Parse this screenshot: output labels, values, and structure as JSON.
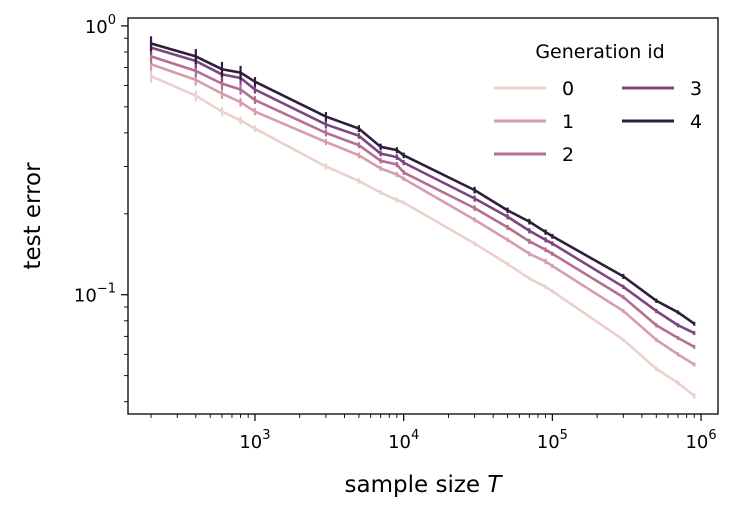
{
  "chart_data": {
    "type": "line",
    "xscale": "log",
    "yscale": "log",
    "xlabel": "sample size T",
    "ylabel": "test error",
    "xlim": [
      140,
      1300000
    ],
    "ylim": [
      0.036,
      1.07
    ],
    "x": [
      200,
      400,
      600,
      800,
      1000,
      3000,
      5000,
      7000,
      9000,
      10000,
      30000,
      50000,
      70000,
      90000,
      100000,
      300000,
      500000,
      700000,
      900000
    ],
    "xticks": [
      {
        "value": 1000,
        "base": "10",
        "exp": "3"
      },
      {
        "value": 10000,
        "base": "10",
        "exp": "4"
      },
      {
        "value": 100000,
        "base": "10",
        "exp": "5"
      },
      {
        "value": 1000000,
        "base": "10",
        "exp": "6"
      }
    ],
    "yticks": [
      {
        "value": 0.1,
        "base": "10",
        "exp": "−1"
      },
      {
        "value": 1,
        "base": "10",
        "exp": "0"
      }
    ],
    "legend": {
      "title": "Generation id",
      "position": "top-right",
      "ncol": 2
    },
    "series": [
      {
        "name": "0",
        "color": "#ebd1cb",
        "values": [
          0.65,
          0.55,
          0.48,
          0.445,
          0.415,
          0.3,
          0.265,
          0.24,
          0.225,
          0.22,
          0.155,
          0.13,
          0.115,
          0.107,
          0.103,
          0.068,
          0.053,
          0.047,
          0.042
        ],
        "errors": [
          0.035,
          0.025,
          0.02,
          0.015,
          0.012,
          0.008,
          0.006,
          0.005,
          0.005,
          0.004,
          0.003,
          0.0025,
          0.002,
          0.002,
          0.002,
          0.001,
          0.001,
          0.001,
          0.001
        ]
      },
      {
        "name": "1",
        "color": "#d49eae",
        "values": [
          0.72,
          0.63,
          0.56,
          0.52,
          0.48,
          0.37,
          0.33,
          0.295,
          0.28,
          0.27,
          0.19,
          0.16,
          0.142,
          0.133,
          0.128,
          0.087,
          0.068,
          0.06,
          0.055
        ],
        "errors": [
          0.04,
          0.03,
          0.025,
          0.02,
          0.015,
          0.01,
          0.008,
          0.006,
          0.006,
          0.005,
          0.004,
          0.003,
          0.003,
          0.003,
          0.002,
          0.0015,
          0.0012,
          0.001,
          0.001
        ]
      },
      {
        "name": "2",
        "color": "#b56f96",
        "values": [
          0.77,
          0.68,
          0.61,
          0.58,
          0.53,
          0.4,
          0.36,
          0.315,
          0.305,
          0.285,
          0.21,
          0.178,
          0.158,
          0.147,
          0.142,
          0.098,
          0.077,
          0.069,
          0.064
        ],
        "errors": [
          0.045,
          0.035,
          0.03,
          0.025,
          0.018,
          0.012,
          0.009,
          0.007,
          0.007,
          0.006,
          0.005,
          0.004,
          0.0035,
          0.003,
          0.0025,
          0.0018,
          0.0014,
          0.0012,
          0.0011
        ]
      },
      {
        "name": "3",
        "color": "#7e4681",
        "values": [
          0.83,
          0.74,
          0.66,
          0.64,
          0.58,
          0.43,
          0.39,
          0.335,
          0.325,
          0.31,
          0.228,
          0.195,
          0.173,
          0.16,
          0.155,
          0.107,
          0.087,
          0.077,
          0.072
        ],
        "errors": [
          0.05,
          0.045,
          0.04,
          0.035,
          0.02,
          0.015,
          0.01,
          0.008,
          0.008,
          0.007,
          0.006,
          0.0045,
          0.004,
          0.0035,
          0.003,
          0.002,
          0.0016,
          0.0014,
          0.0012
        ]
      },
      {
        "name": "4",
        "color": "#2e1e3b",
        "values": [
          0.86,
          0.77,
          0.69,
          0.67,
          0.62,
          0.46,
          0.415,
          0.355,
          0.345,
          0.33,
          0.245,
          0.206,
          0.187,
          0.171,
          0.165,
          0.117,
          0.095,
          0.086,
          0.078
        ],
        "errors": [
          0.055,
          0.05,
          0.045,
          0.04,
          0.025,
          0.018,
          0.012,
          0.01,
          0.009,
          0.008,
          0.007,
          0.005,
          0.0045,
          0.004,
          0.0035,
          0.0025,
          0.0018,
          0.0015,
          0.0013
        ]
      }
    ]
  }
}
